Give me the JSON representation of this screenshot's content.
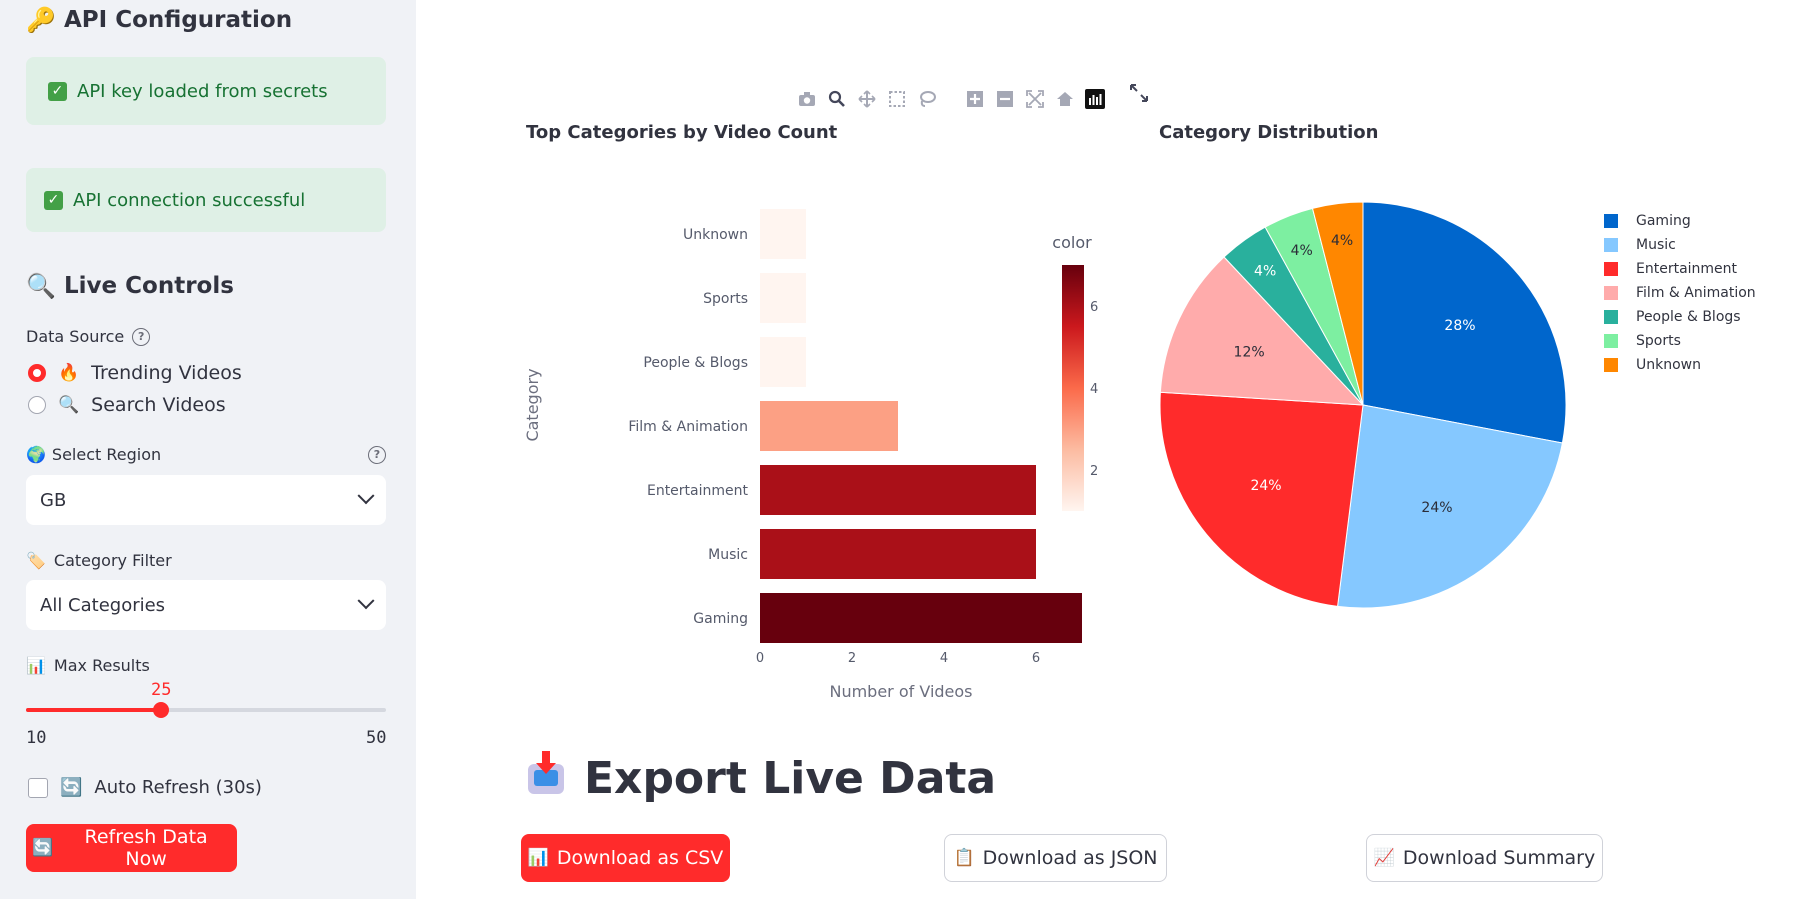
{
  "sidebar": {
    "api_header": {
      "icon": "key-icon",
      "title": "API Configuration"
    },
    "alerts": [
      {
        "text": "API key loaded from secrets"
      },
      {
        "text": "API connection successful"
      }
    ],
    "live_header": {
      "icon": "magnifier-icon",
      "title": "Live Controls"
    },
    "data_source": {
      "label": "Data Source",
      "options": [
        {
          "label": "Trending Videos",
          "emoji": "🔥",
          "selected": true
        },
        {
          "label": "Search Videos",
          "emoji": "🔍",
          "selected": false
        }
      ]
    },
    "region": {
      "label": "Select Region",
      "emoji": "🌍",
      "value": "GB"
    },
    "category": {
      "label": "Category Filter",
      "emoji": "🏷️",
      "value": "All Categories"
    },
    "max_results": {
      "label": "Max Results",
      "emoji": "📊",
      "value": "25",
      "min": "10",
      "max": "50",
      "fraction": 0.375
    },
    "auto_refresh": {
      "label": "Auto Refresh (30s)",
      "emoji": "🔄",
      "checked": false
    },
    "refresh_button": {
      "label": "Refresh Data Now",
      "emoji": "🔄"
    }
  },
  "charts": {
    "bar_title": "Top Categories by Video Count",
    "pie_title": "Category Distribution",
    "y_label": "Category",
    "x_label": "Number of Videos",
    "colorbar_label": "color"
  },
  "chart_data": [
    {
      "type": "bar",
      "title": "Top Categories by Video Count",
      "xlabel": "Number of Videos",
      "ylabel": "Category",
      "categories": [
        "Gaming",
        "Music",
        "Entertainment",
        "Film & Animation",
        "People & Blogs",
        "Sports",
        "Unknown"
      ],
      "values": [
        7,
        6,
        6,
        3,
        1,
        1,
        1
      ],
      "xlim": [
        0,
        7
      ],
      "x_ticks": [
        "0",
        "2",
        "4",
        "6"
      ],
      "colorbar": {
        "label": "color",
        "ticks": [
          "2",
          "4",
          "6"
        ],
        "range": [
          1,
          7
        ]
      }
    },
    {
      "type": "pie",
      "title": "Category Distribution",
      "labels": [
        "Gaming",
        "Music",
        "Entertainment",
        "Film & Animation",
        "People & Blogs",
        "Sports",
        "Unknown"
      ],
      "values": [
        28,
        24,
        24,
        12,
        4,
        4,
        4
      ],
      "text": [
        "28%",
        "24%",
        "24%",
        "12%",
        "4%",
        "4%",
        "4%"
      ],
      "colors": [
        "#0066cc",
        "#85c8ff",
        "#ff2b2b",
        "#ffabab",
        "#29b09d",
        "#7defa1",
        "#ff8700"
      ],
      "legend_position": "right"
    }
  ],
  "export": {
    "title": "Export Live Data",
    "buttons": [
      {
        "label": "Download as CSV",
        "emoji": "📊"
      },
      {
        "label": "Download as JSON",
        "emoji": "📋"
      },
      {
        "label": "Download Summary",
        "emoji": "📈"
      }
    ]
  },
  "colors": {
    "accent": "#ff2b2b",
    "sidebar_bg": "#f0f2f6",
    "success_text": "#177233",
    "success_bg": "#dff0e6"
  }
}
